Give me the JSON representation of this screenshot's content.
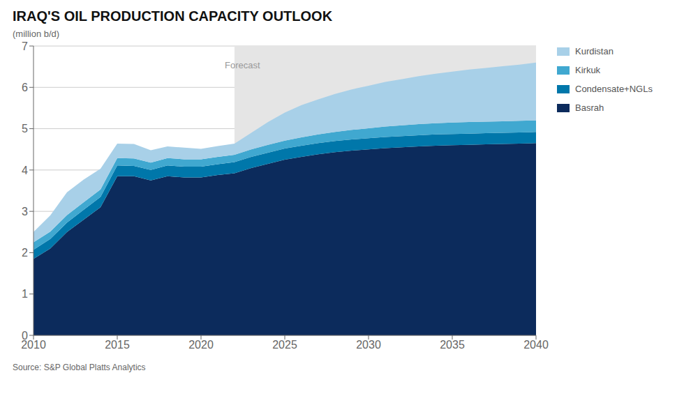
{
  "chart_data": {
    "type": "area",
    "stacked": true,
    "title": "IRAQ'S OIL PRODUCTION CAPACITY OUTLOOK",
    "y_label": "(million b/d)",
    "source": "Source: S&P Global Platts Analytics",
    "annotations": [
      {
        "text": "Forecast",
        "x_start": 2022,
        "x_end": 2040,
        "y": 6.7,
        "color": "#e5e5e5"
      }
    ],
    "x": [
      2010,
      2011,
      2012,
      2013,
      2014,
      2015,
      2016,
      2017,
      2018,
      2019,
      2020,
      2021,
      2022,
      2023,
      2024,
      2025,
      2026,
      2027,
      2028,
      2029,
      2030,
      2031,
      2032,
      2033,
      2034,
      2035,
      2036,
      2037,
      2038,
      2039,
      2040
    ],
    "xlim": [
      2010,
      2040
    ],
    "xticks": [
      2010,
      2015,
      2020,
      2025,
      2030,
      2035,
      2040
    ],
    "ylim": [
      0,
      7
    ],
    "yticks": [
      0,
      1,
      2,
      3,
      4,
      5,
      6,
      7
    ],
    "grid": true,
    "legend": "right",
    "series": [
      {
        "name": "Basrah",
        "color": "#0c2b5c",
        "values": [
          1.85,
          2.1,
          2.5,
          2.8,
          3.1,
          3.85,
          3.85,
          3.75,
          3.85,
          3.82,
          3.82,
          3.88,
          3.92,
          4.05,
          4.15,
          4.25,
          4.32,
          4.38,
          4.43,
          4.47,
          4.5,
          4.53,
          4.55,
          4.57,
          4.59,
          4.6,
          4.61,
          4.62,
          4.63,
          4.64,
          4.65
        ]
      },
      {
        "name": "Condensate+NGLs",
        "color": "#0077aa",
        "values": [
          0.22,
          0.23,
          0.23,
          0.24,
          0.25,
          0.26,
          0.25,
          0.25,
          0.26,
          0.26,
          0.26,
          0.26,
          0.27,
          0.27,
          0.27,
          0.27,
          0.27,
          0.27,
          0.27,
          0.27,
          0.27,
          0.27,
          0.27,
          0.27,
          0.27,
          0.27,
          0.27,
          0.27,
          0.27,
          0.27,
          0.27
        ]
      },
      {
        "name": "Kirkuk",
        "color": "#40a8d0",
        "values": [
          0.18,
          0.18,
          0.18,
          0.18,
          0.18,
          0.18,
          0.18,
          0.18,
          0.18,
          0.18,
          0.18,
          0.18,
          0.18,
          0.18,
          0.19,
          0.19,
          0.2,
          0.21,
          0.22,
          0.23,
          0.24,
          0.25,
          0.26,
          0.27,
          0.27,
          0.28,
          0.28,
          0.28,
          0.28,
          0.28,
          0.28
        ]
      },
      {
        "name": "Kurdistan",
        "color": "#a8d0e8",
        "values": [
          0.25,
          0.39,
          0.55,
          0.55,
          0.5,
          0.35,
          0.35,
          0.3,
          0.28,
          0.28,
          0.25,
          0.26,
          0.27,
          0.4,
          0.55,
          0.68,
          0.78,
          0.85,
          0.92,
          0.98,
          1.03,
          1.08,
          1.12,
          1.16,
          1.2,
          1.23,
          1.27,
          1.3,
          1.33,
          1.36,
          1.4
        ]
      }
    ]
  }
}
